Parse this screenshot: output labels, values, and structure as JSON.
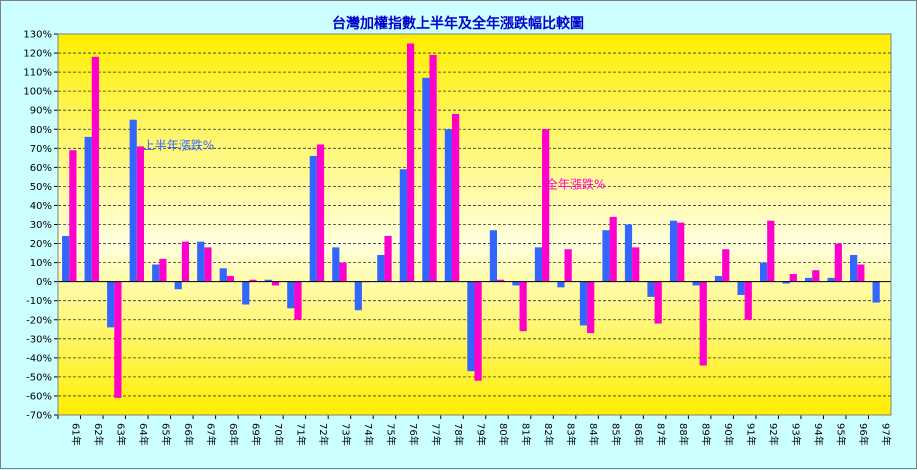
{
  "chart_data": {
    "type": "bar",
    "title": "台灣加權指數上半年及全年漲跌幅比較圖",
    "xlabel": "",
    "ylabel": "",
    "ylim": [
      -70,
      130
    ],
    "ytick_step": 10,
    "grid": true,
    "categories": [
      "61年",
      "62年",
      "63年",
      "64年",
      "65年",
      "66年",
      "67年",
      "68年",
      "69年",
      "70年",
      "71年",
      "72年",
      "73年",
      "74年",
      "75年",
      "76年",
      "77年",
      "78年",
      "79年",
      "80年",
      "81年",
      "82年",
      "83年",
      "84年",
      "85年",
      "86年",
      "87年",
      "88年",
      "89年",
      "90年",
      "91年",
      "92年",
      "93年",
      "94年",
      "95年",
      "96年",
      "97年"
    ],
    "series": [
      {
        "name": "上半年漲跌%",
        "color": "#3366ff",
        "values": [
          24,
          76,
          -24,
          85,
          9,
          -4,
          21,
          7,
          -12,
          1,
          -14,
          66,
          18,
          -15,
          14,
          59,
          107,
          80,
          -47,
          27,
          -2,
          18,
          -3,
          -23,
          27,
          30,
          -8,
          32,
          -2,
          3,
          -7,
          10,
          -1,
          2,
          2,
          14,
          -11
        ]
      },
      {
        "name": "全年漲跌%",
        "color": "#ff00cc",
        "values": [
          69,
          118,
          -61,
          71,
          12,
          21,
          18,
          3,
          1,
          -2,
          -20,
          72,
          10,
          0,
          24,
          125,
          119,
          88,
          -52,
          1,
          -26,
          80,
          17,
          -27,
          34,
          18,
          -22,
          31,
          -44,
          17,
          -20,
          32,
          4,
          6,
          20,
          9,
          null
        ]
      }
    ],
    "annotations": [
      {
        "text": "上半年漲跌%",
        "series": 0
      },
      {
        "text": "全年漲跌%",
        "series": 1
      }
    ],
    "colors": {
      "background": "#ccffff",
      "plot_top": "#ffee00",
      "plot_bottom": "#ffffdd",
      "grid": "#333333"
    }
  }
}
